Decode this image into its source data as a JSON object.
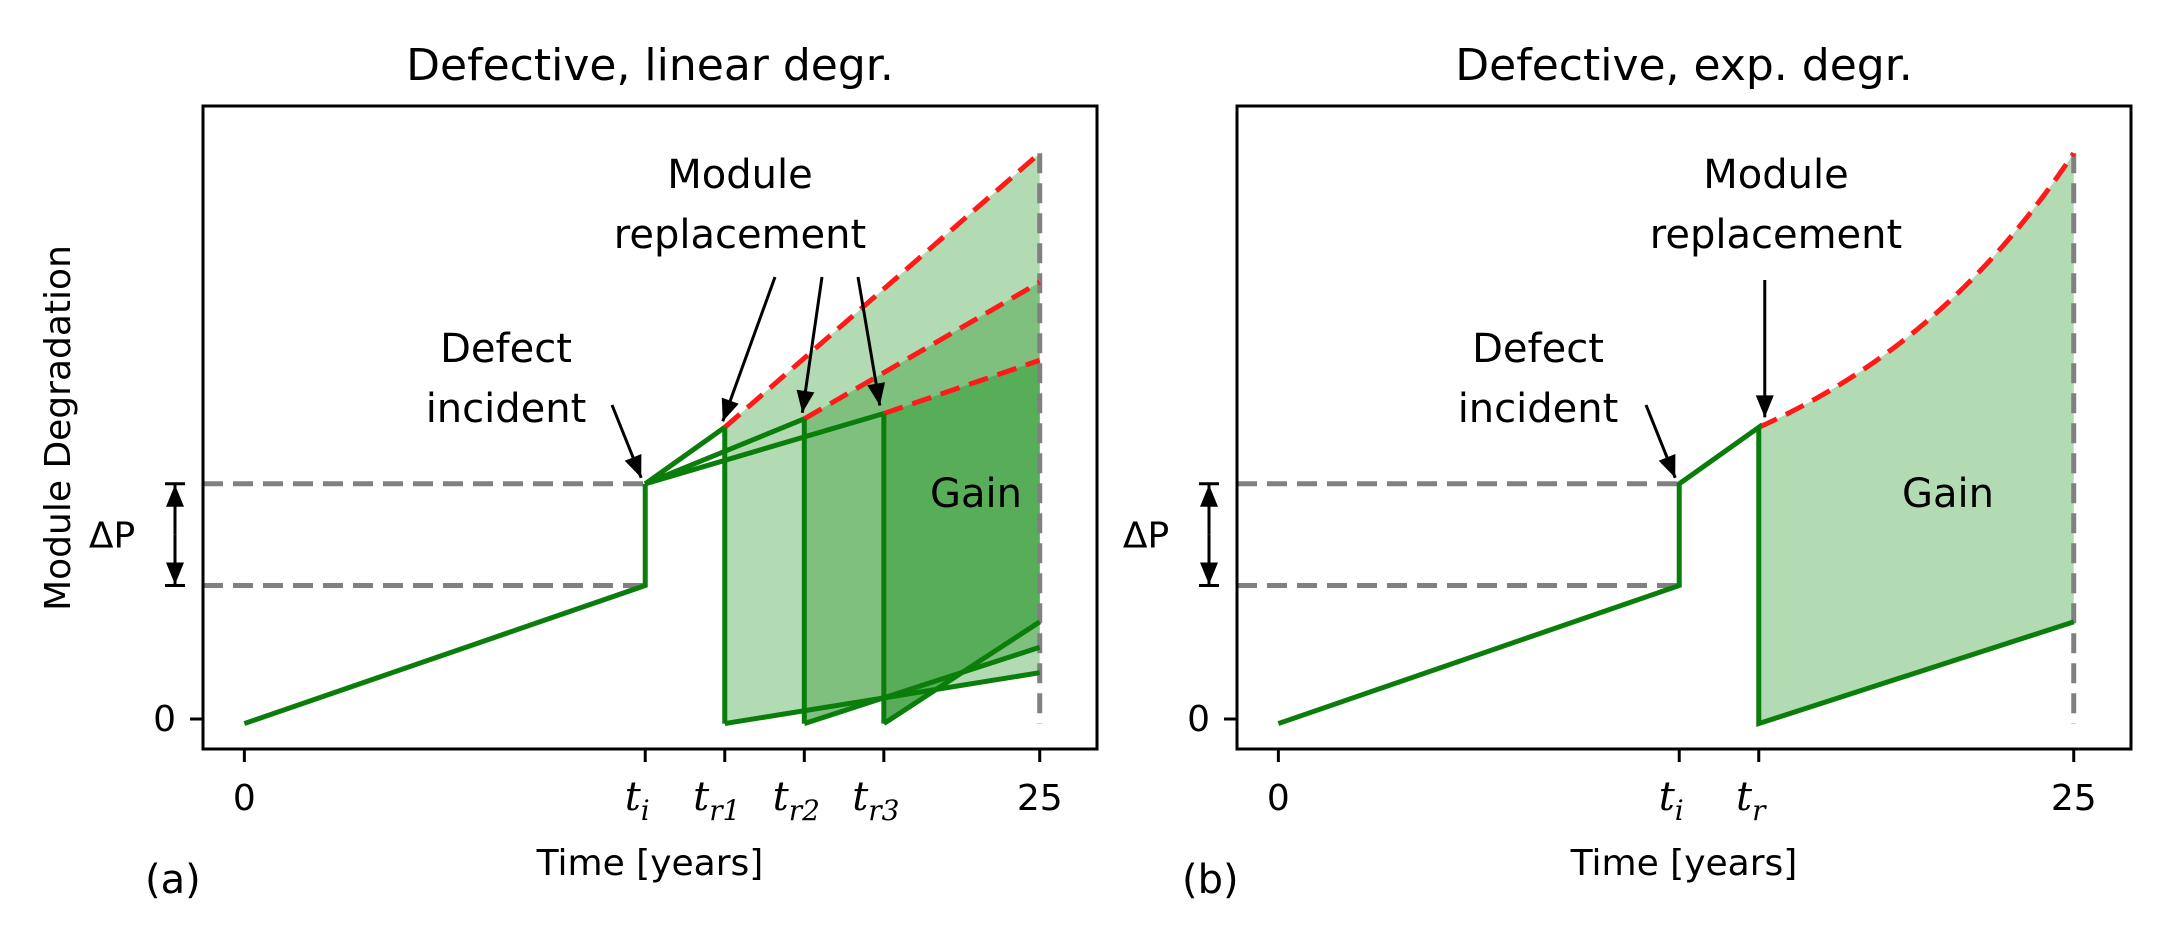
{
  "chart_data": [
    {
      "panel_label": "(a)",
      "type": "line",
      "title": "Defective, linear degr.",
      "xlabel": "Time [years]",
      "ylabel": "Module Degradation",
      "xlim": [
        -1.3,
        26.8
      ],
      "ylim": [
        -0.07,
        1.7
      ],
      "xticks": [
        {
          "x": 0,
          "base": "0",
          "sub": ""
        },
        {
          "x": 12.6,
          "base": "t",
          "sub": "i"
        },
        {
          "x": 15.1,
          "base": "t",
          "sub": "r1"
        },
        {
          "x": 17.6,
          "base": "t",
          "sub": "r2"
        },
        {
          "x": 20.1,
          "base": "t",
          "sub": "r3"
        },
        {
          "x": 25,
          "base": "25",
          "sub": ""
        }
      ],
      "yticks": [
        {
          "y": 0,
          "label": "0"
        }
      ],
      "delta_label": "ΔP",
      "delta_range": [
        0.38,
        0.66
      ],
      "initial_line": {
        "x": [
          0,
          12.6
        ],
        "y": [
          0,
          0.38
        ]
      },
      "jump": {
        "x": 12.6,
        "y": [
          0.38,
          0.66
        ]
      },
      "defect_slopes": [
        0.0542,
        0.0471,
        0.0317
      ],
      "replacements": [
        {
          "tr": 15.1,
          "top": 0.8155,
          "red_end": 1.57,
          "new_end": 0.14,
          "fill": "#b3dbb3"
        },
        {
          "tr": 17.6,
          "top": 0.8389,
          "red_end": 1.215,
          "new_end": 0.21,
          "fill": "#7fc07f"
        },
        {
          "tr": 20.1,
          "top": 0.8536,
          "red_end": 1.0,
          "new_end": 0.28,
          "fill": "#58ad58"
        }
      ],
      "annotations": {
        "defect": [
          "Defect",
          "incident"
        ],
        "replacement": [
          "Module",
          "replacement"
        ],
        "gain": "Gain"
      }
    },
    {
      "panel_label": "(b)",
      "type": "line",
      "title": "Defective, exp. degr.",
      "xlabel": "Time [years]",
      "ylabel": "",
      "xlim": [
        -1.3,
        26.8
      ],
      "ylim": [
        -0.07,
        1.7
      ],
      "xticks": [
        {
          "x": 0,
          "base": "0",
          "sub": ""
        },
        {
          "x": 12.6,
          "base": "t",
          "sub": "i"
        },
        {
          "x": 15.1,
          "base": "t",
          "sub": "r"
        },
        {
          "x": 25,
          "base": "25",
          "sub": ""
        }
      ],
      "yticks": [
        {
          "y": 0,
          "label": "0"
        }
      ],
      "delta_label": "ΔP",
      "delta_range": [
        0.38,
        0.66
      ],
      "initial_line": {
        "x": [
          0,
          12.6
        ],
        "y": [
          0,
          0.38
        ]
      },
      "jump": {
        "x": 12.6,
        "y": [
          0.38,
          0.66
        ]
      },
      "defect_slope": 0.0542,
      "replacement": {
        "tr": 15.1,
        "top": 0.8155,
        "red_end": 1.57,
        "new_end": 0.28,
        "fill": "#b3dbb3"
      },
      "annotations": {
        "defect": [
          "Defect",
          "incident"
        ],
        "replacement": [
          "Module",
          "replacement"
        ],
        "gain": "Gain"
      }
    }
  ]
}
